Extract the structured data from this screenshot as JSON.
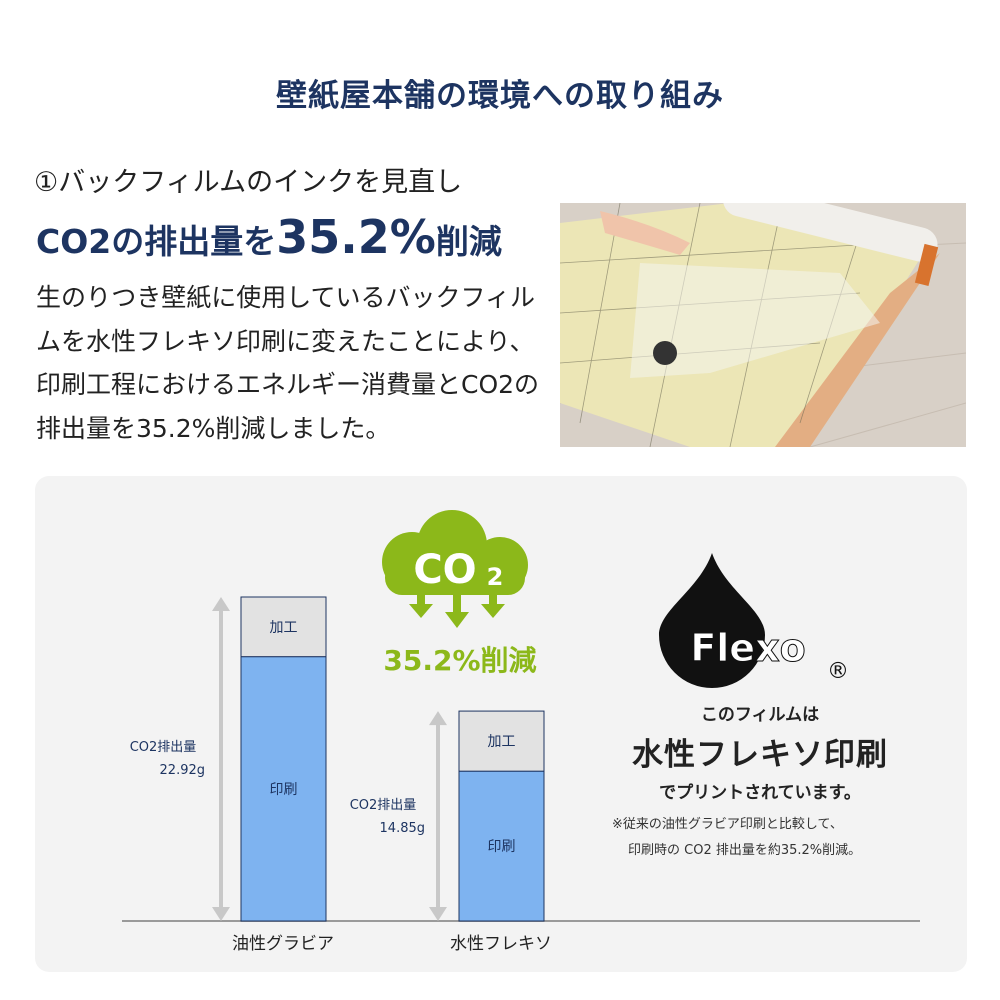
{
  "header": {
    "title": "壁紙屋本舗の環境への取り組み"
  },
  "section": {
    "subtitle": "①バックフィルムのインクを見直し",
    "headline_pre": "CO2の排出量を",
    "headline_value": "35.2%",
    "headline_post": "削減",
    "body": "生のりつき壁紙に使用しているバックフィルムを水性フレキソ印刷に変えたことにより、印刷工程におけるエネルギー消費量とCO2の排出量を35.2%削減しました。"
  },
  "badge": {
    "cloud_text": "CO",
    "cloud_sub": "2",
    "reduction": "35.2%削減",
    "color": "#8cb81a"
  },
  "logo": {
    "text": "Flexo",
    "registered": "®"
  },
  "flexo_note": {
    "line1": "このフィルムは",
    "line2": "水性フレキソ印刷",
    "line3": "でプリントされています。",
    "note1": "※従来の油性グラビア印刷と比較して、",
    "note2": "印刷時の CO2 排出量を約35.2%削減。"
  },
  "chart_data": {
    "type": "bar",
    "stacked": true,
    "categories": [
      "油性グラビア",
      "水性フレキソ"
    ],
    "series": [
      {
        "name": "印刷",
        "values": [
          18.7,
          10.6
        ],
        "color": "#7eb3f0"
      },
      {
        "name": "加工",
        "values": [
          4.22,
          4.25
        ],
        "color": "#e2e2e2"
      }
    ],
    "total_label": "CO2排出量",
    "totals": [
      "22.92g",
      "14.85g"
    ],
    "total_values": [
      22.92,
      14.85
    ],
    "ylim": [
      0,
      22.92
    ]
  }
}
